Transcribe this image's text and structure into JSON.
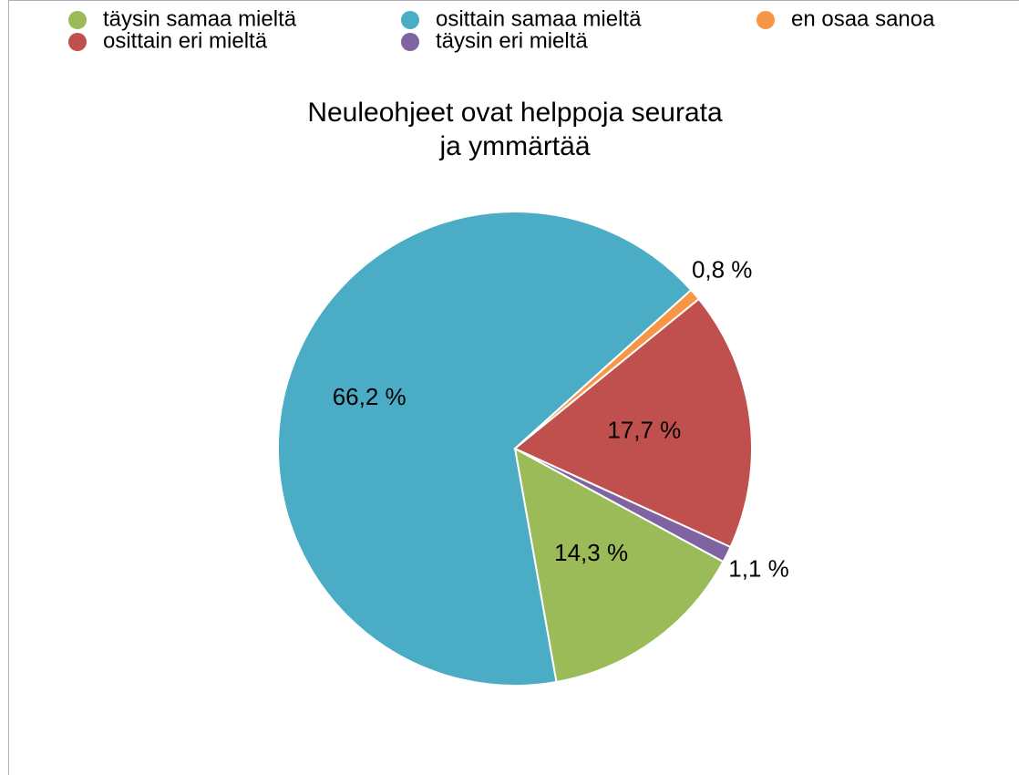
{
  "chart_data": {
    "type": "pie",
    "title": [
      "Neuleohjeet ovat helppoja seurata",
      "ja ymmärtää"
    ],
    "categories": [
      "täysin samaa mieltä",
      "osittain samaa mieltä",
      "en osaa sanoa",
      "osittain eri mieltä",
      "täysin eri mieltä"
    ],
    "values": [
      14.3,
      66.2,
      0.8,
      17.7,
      1.1
    ],
    "value_labels": [
      "14,3 %",
      "66,2 %",
      "0,8 %",
      "17,7 %",
      "1,1 %"
    ],
    "colors": [
      "#9bbb59",
      "#4bacc6",
      "#f79646",
      "#c0504d",
      "#8064a2"
    ],
    "legend": "top"
  }
}
